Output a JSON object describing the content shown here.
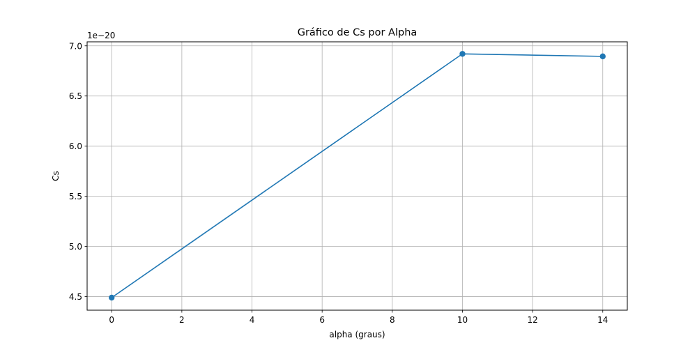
{
  "chart_data": {
    "type": "line",
    "title": "Gráfico de Cs por Alpha",
    "xlabel": "alpha (graus)",
    "ylabel": "Cs",
    "y_offset_label": "1e−20",
    "y_scale_exponent": -20,
    "xlim": [
      -0.7,
      14.7
    ],
    "ylim": [
      4.365,
      7.04
    ],
    "x_ticks": [
      0,
      2,
      4,
      6,
      8,
      10,
      12,
      14
    ],
    "x_tick_labels": [
      "0",
      "2",
      "4",
      "6",
      "8",
      "10",
      "12",
      "14"
    ],
    "y_ticks": [
      4.5,
      5.0,
      5.5,
      6.0,
      6.5,
      7.0
    ],
    "y_tick_labels": [
      "4.5",
      "5.0",
      "5.5",
      "6.0",
      "6.5",
      "7.0"
    ],
    "grid": true,
    "series": [
      {
        "x": [
          0,
          10,
          14
        ],
        "y": [
          4.49,
          6.92,
          6.895
        ],
        "color": "#1f77b4",
        "marker": "circle"
      }
    ]
  }
}
